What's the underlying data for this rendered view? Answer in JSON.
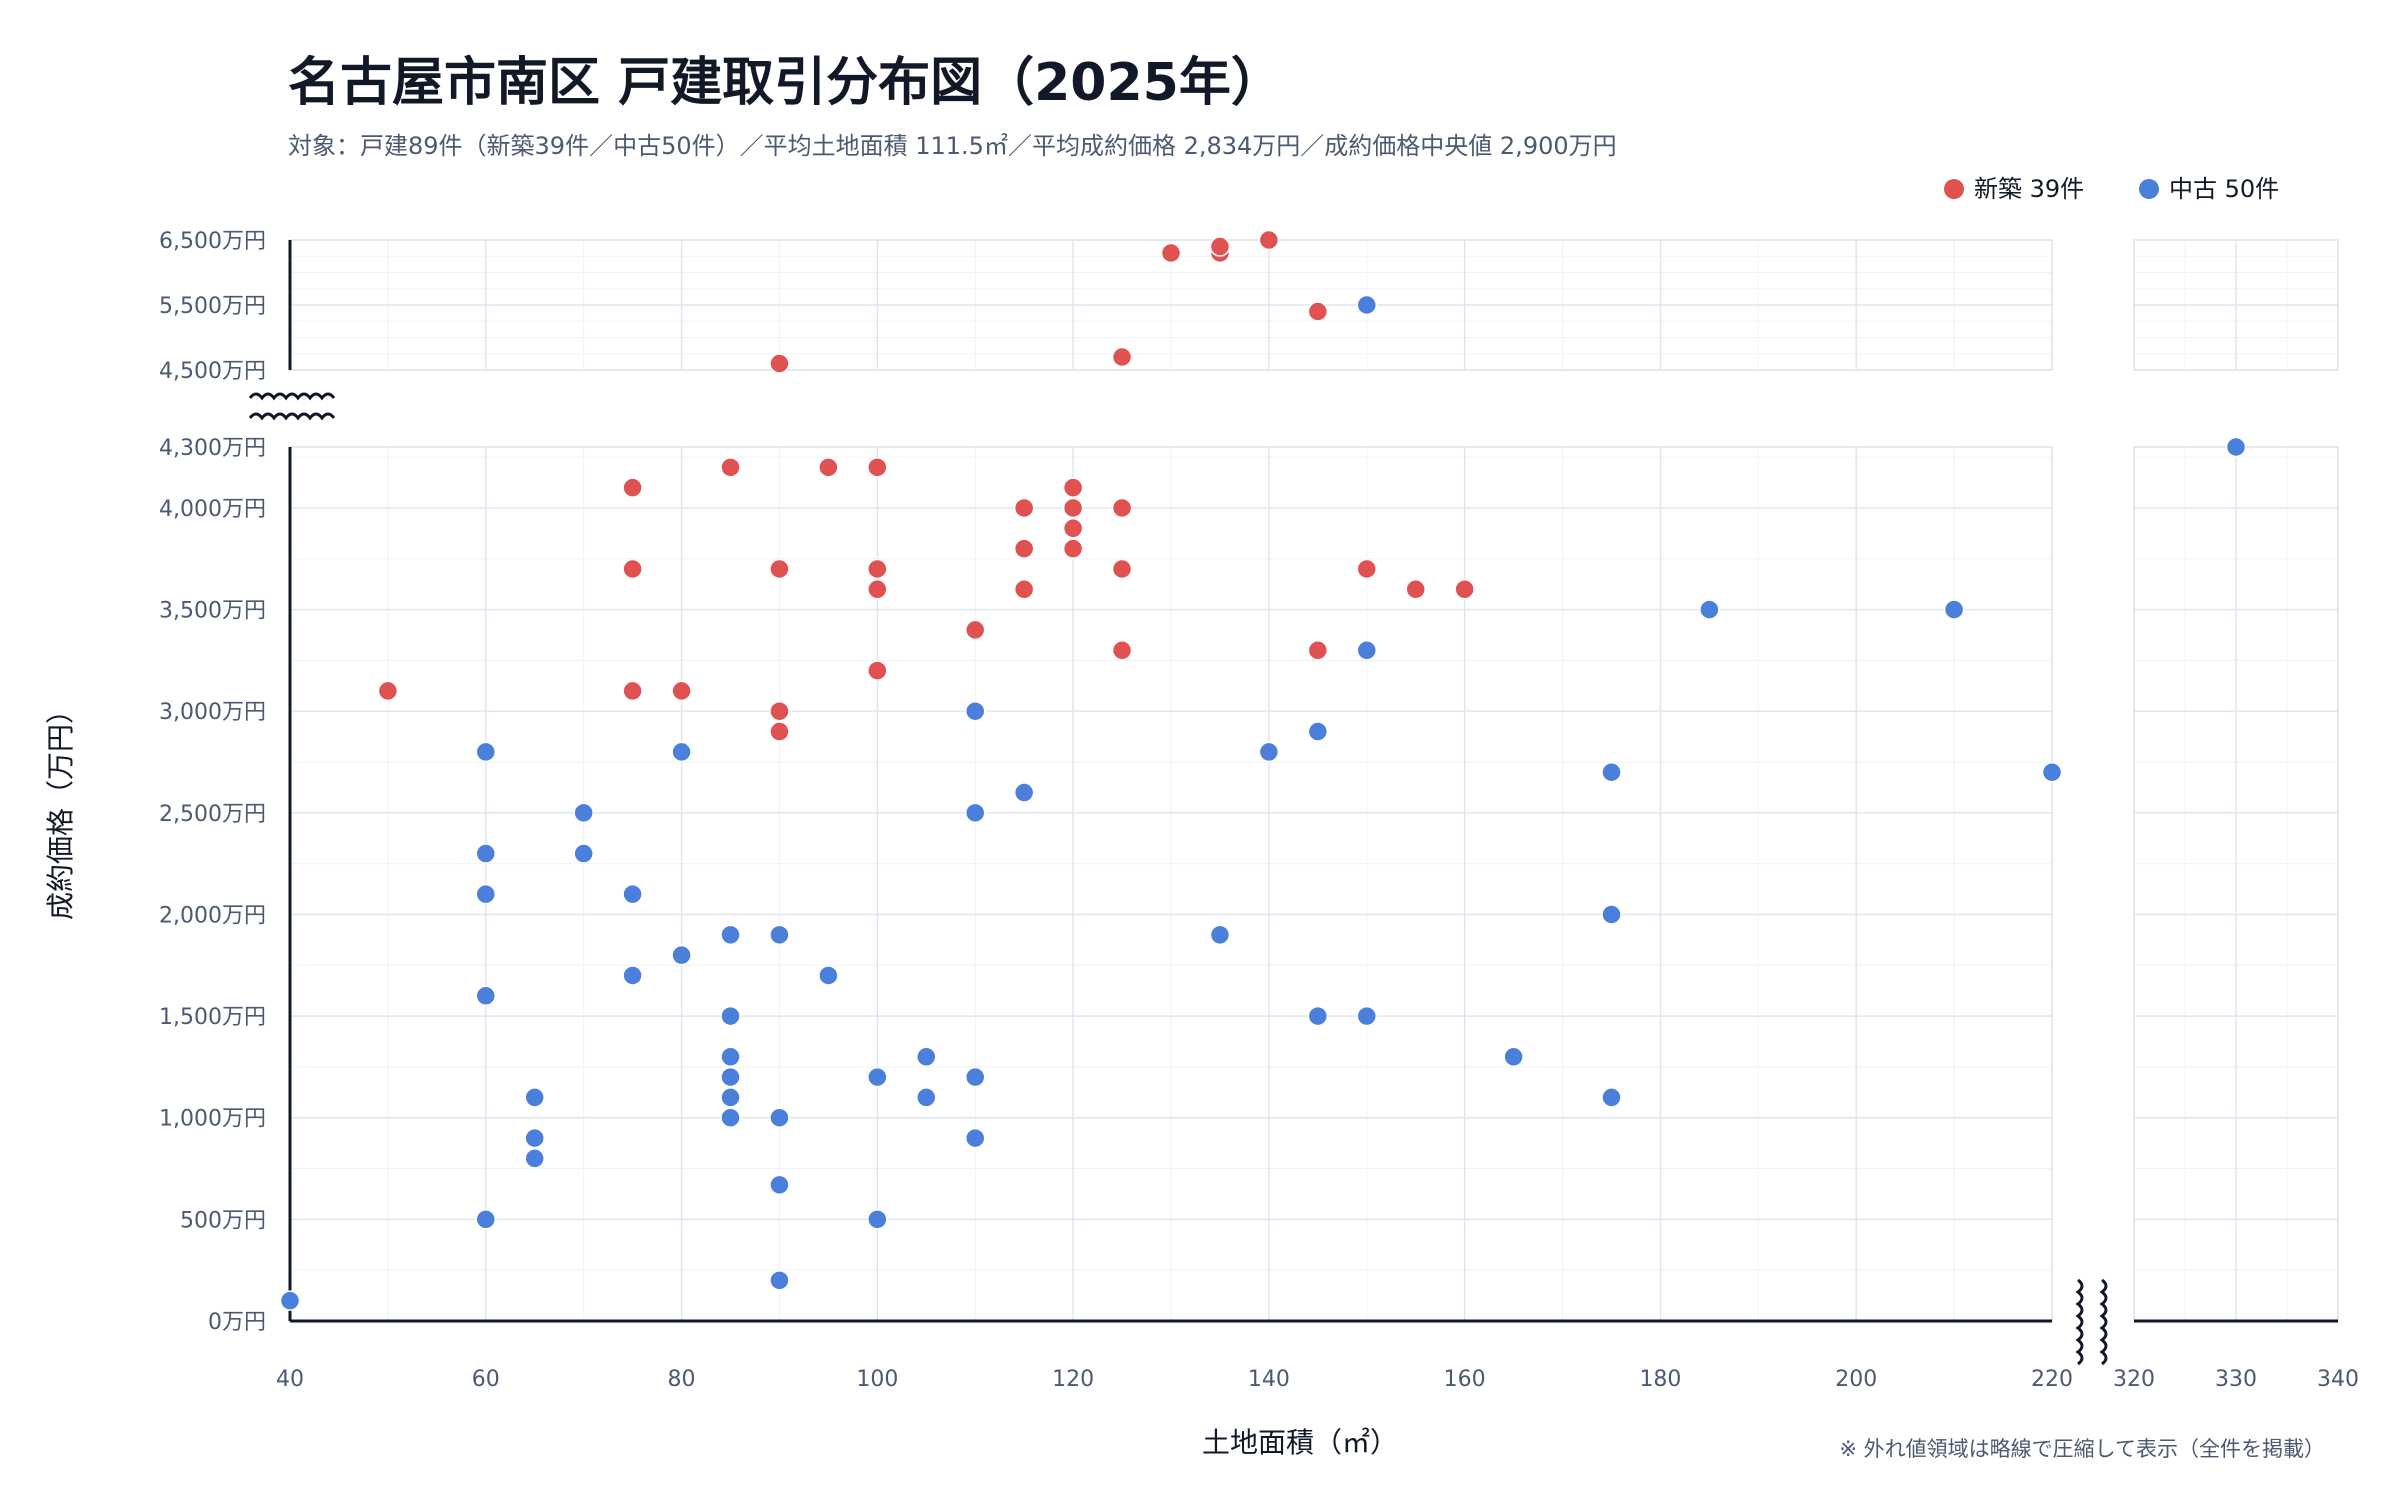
{
  "chart_data": {
    "type": "scatter",
    "title": "名古屋市南区 戸建取引分布図（2025年）",
    "subtitle": "対象：戸建89件（新築39件／中古50件）／平均土地面積 111.5㎡／平均成約価格 2,834万円／成約価格中央値 2,900万円",
    "xlabel": "土地面積（㎡）",
    "ylabel": "成約価格（万円）",
    "note": "※ 外れ値領域は略線で圧縮して表示（全件を掲載）",
    "legend_position": "top-right",
    "grid": true,
    "x_main_range": [
      40,
      220
    ],
    "x_break_range": [
      320,
      340
    ],
    "y_low_range": [
      0,
      4300
    ],
    "y_high_range": [
      4500,
      6500
    ],
    "x_ticks_main": [
      "40",
      "60",
      "80",
      "100",
      "120",
      "140",
      "160",
      "180",
      "200",
      "220"
    ],
    "x_ticks_break": [
      "320",
      "330",
      "340"
    ],
    "y_ticks_low": [
      {
        "v": 0,
        "label": "0万円"
      },
      {
        "v": 500,
        "label": "500万円"
      },
      {
        "v": 1000,
        "label": "1,000万円"
      },
      {
        "v": 1500,
        "label": "1,500万円"
      },
      {
        "v": 2000,
        "label": "2,000万円"
      },
      {
        "v": 2500,
        "label": "2,500万円"
      },
      {
        "v": 3000,
        "label": "3,000万円"
      },
      {
        "v": 3500,
        "label": "3,500万円"
      },
      {
        "v": 4000,
        "label": "4,000万円"
      },
      {
        "v": 4300,
        "label": "4,300万円"
      }
    ],
    "y_ticks_high": [
      {
        "v": 4500,
        "label": "4,500万円"
      },
      {
        "v": 5500,
        "label": "5,500万円"
      },
      {
        "v": 6500,
        "label": "6,500万円"
      }
    ],
    "series": [
      {
        "name": "新築",
        "legend": "新築 39件",
        "color": "#e05252",
        "points": [
          [
            50,
            3100
          ],
          [
            75,
            4100
          ],
          [
            75,
            3700
          ],
          [
            75,
            3100
          ],
          [
            80,
            3100
          ],
          [
            85,
            4200
          ],
          [
            90,
            3700
          ],
          [
            90,
            3000
          ],
          [
            90,
            2900
          ],
          [
            90,
            4600
          ],
          [
            95,
            4200
          ],
          [
            100,
            4200
          ],
          [
            100,
            3700
          ],
          [
            100,
            3600
          ],
          [
            100,
            3200
          ],
          [
            110,
            3400
          ],
          [
            115,
            4000
          ],
          [
            115,
            3800
          ],
          [
            115,
            3600
          ],
          [
            120,
            4100
          ],
          [
            120,
            4000
          ],
          [
            120,
            3900
          ],
          [
            120,
            3800
          ],
          [
            125,
            4000
          ],
          [
            125,
            3700
          ],
          [
            125,
            3300
          ],
          [
            125,
            4700
          ],
          [
            130,
            6300
          ],
          [
            135,
            6300
          ],
          [
            135,
            6400
          ],
          [
            140,
            6500
          ],
          [
            145,
            5400
          ],
          [
            145,
            3300
          ],
          [
            150,
            3700
          ],
          [
            155,
            3600
          ],
          [
            160,
            3600
          ],
          [
            100,
            3600
          ],
          [
            115,
            4000
          ],
          [
            125,
            4000
          ]
        ]
      },
      {
        "name": "中古",
        "legend": "中古 50件",
        "color": "#4a7fdc",
        "points": [
          [
            40,
            100
          ],
          [
            60,
            2800
          ],
          [
            60,
            2300
          ],
          [
            60,
            2100
          ],
          [
            60,
            1600
          ],
          [
            60,
            500
          ],
          [
            65,
            1100
          ],
          [
            65,
            900
          ],
          [
            65,
            800
          ],
          [
            70,
            2500
          ],
          [
            70,
            2300
          ],
          [
            75,
            2100
          ],
          [
            75,
            1700
          ],
          [
            80,
            2800
          ],
          [
            80,
            1800
          ],
          [
            85,
            1900
          ],
          [
            85,
            1500
          ],
          [
            85,
            1300
          ],
          [
            85,
            1200
          ],
          [
            85,
            1100
          ],
          [
            85,
            1000
          ],
          [
            90,
            1900
          ],
          [
            90,
            1000
          ],
          [
            90,
            670
          ],
          [
            90,
            200
          ],
          [
            95,
            1700
          ],
          [
            100,
            1200
          ],
          [
            100,
            500
          ],
          [
            105,
            1300
          ],
          [
            105,
            1100
          ],
          [
            110,
            3000
          ],
          [
            110,
            2500
          ],
          [
            110,
            1200
          ],
          [
            110,
            900
          ],
          [
            115,
            2600
          ],
          [
            135,
            1900
          ],
          [
            140,
            2800
          ],
          [
            145,
            2900
          ],
          [
            145,
            1500
          ],
          [
            150,
            3300
          ],
          [
            150,
            1500
          ],
          [
            150,
            5500
          ],
          [
            165,
            1300
          ],
          [
            175,
            2700
          ],
          [
            175,
            2000
          ],
          [
            175,
            1100
          ],
          [
            185,
            3500
          ],
          [
            210,
            3500
          ],
          [
            220,
            2700
          ],
          [
            330,
            4300
          ]
        ]
      }
    ]
  }
}
